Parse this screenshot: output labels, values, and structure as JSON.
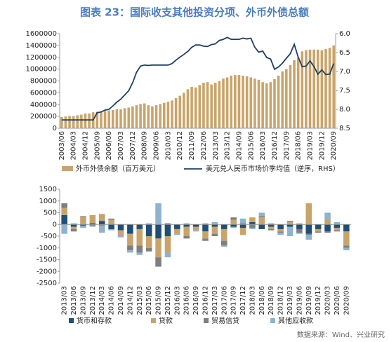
{
  "title": "图表 23：国际收支其他投资分项、外币外债总额",
  "source": "数据来源：Wind、兴业研究",
  "chart_data": [
    {
      "type": "bar",
      "categories": [
        "2003/06",
        null,
        null,
        "2004/03",
        null,
        null,
        "2004/12",
        null,
        null,
        "2005/09",
        null,
        null,
        "2006/06",
        null,
        null,
        "2007/03",
        null,
        null,
        "2007/12",
        null,
        null,
        "2008/09",
        null,
        null,
        "2009/06",
        null,
        null,
        "2010/03",
        null,
        null,
        "2010/12",
        null,
        null,
        "2011/09",
        null,
        null,
        "2012/06",
        null,
        null,
        "2013/03",
        null,
        null,
        "2013/12",
        null,
        null,
        "2014/09",
        null,
        null,
        "2015/06",
        null,
        null,
        "2016/03",
        null,
        null,
        "2016/12",
        null,
        null,
        "2017/09",
        null,
        null,
        "2018/06",
        null,
        null,
        "2019/03",
        null,
        null,
        "2019/12",
        null,
        null,
        "2020/09"
      ],
      "series": [
        {
          "name": "外币外债余额（百万美元）",
          "type": "bar",
          "color": "#c9a46a",
          "values": [
            190000,
            200000,
            210000,
            205000,
            220000,
            230000,
            250000,
            250000,
            270000,
            280000,
            280000,
            290000,
            300000,
            310000,
            320000,
            320000,
            340000,
            350000,
            370000,
            390000,
            410000,
            420000,
            390000,
            370000,
            390000,
            410000,
            430000,
            450000,
            470000,
            510000,
            550000,
            600000,
            660000,
            700000,
            690000,
            730000,
            770000,
            780000,
            740000,
            770000,
            800000,
            840000,
            860000,
            890000,
            900000,
            900000,
            890000,
            880000,
            860000,
            840000,
            820000,
            780000,
            760000,
            780000,
            830000,
            890000,
            960000,
            1000000,
            1070000,
            1150000,
            1200000,
            1300000,
            1320000,
            1330000,
            1330000,
            1330000,
            1320000,
            1340000,
            1360000,
            1400000
          ]
        },
        {
          "name": "美元兑人民币市场价季均值（逆序，RHS）",
          "type": "line",
          "axis": "y2",
          "color": "#1f3f66",
          "values": [
            8.28,
            8.28,
            8.28,
            8.28,
            8.28,
            8.28,
            8.28,
            8.28,
            8.28,
            8.09,
            8.07,
            8.02,
            8.0,
            7.91,
            7.81,
            7.73,
            7.62,
            7.51,
            7.3,
            7.02,
            6.86,
            6.83,
            6.84,
            6.83,
            6.83,
            6.83,
            6.83,
            6.83,
            6.79,
            6.7,
            6.62,
            6.55,
            6.47,
            6.36,
            6.3,
            6.3,
            6.33,
            6.34,
            6.29,
            6.27,
            6.18,
            6.15,
            6.1,
            6.15,
            6.15,
            6.15,
            6.12,
            6.14,
            6.12,
            6.36,
            6.49,
            6.46,
            6.63,
            6.67,
            6.94,
            6.88,
            6.78,
            6.65,
            6.53,
            6.28,
            6.62,
            6.87,
            6.86,
            6.72,
            6.87,
            7.07,
            6.96,
            7.08,
            7.07,
            6.79
          ]
        }
      ],
      "ylim": [
        0,
        1600000
      ],
      "yticks": [
        0,
        200000,
        400000,
        600000,
        800000,
        1000000,
        1200000,
        1400000,
        1600000
      ],
      "y2lim": [
        8.5,
        6.0
      ],
      "y2ticks": [
        {
          "value": 6.0,
          "label": "6.0"
        },
        {
          "value": 6.5,
          "label": "6.5"
        },
        {
          "value": 7.0,
          "label": "7.0"
        },
        {
          "value": 7.5,
          "label": "7.5"
        },
        {
          "value": 8.0,
          "label": "8.0"
        },
        {
          "value": 8.5,
          "label": "8.5"
        }
      ],
      "grid": false
    },
    {
      "type": "bar",
      "stacked": true,
      "categories": [
        "2013/03",
        "2013/06",
        "2013/09",
        "2013/12",
        "2014/03",
        "2014/06",
        "2014/09",
        "2014/12",
        "2015/03",
        "2015/06",
        "2015/09",
        "2015/12",
        "2016/03",
        "2016/06",
        "2016/09",
        "2016/12",
        "2017/03",
        "2017/06",
        "2017/09",
        "2017/12",
        "2018/03",
        "2018/06",
        "2018/09",
        "2018/12",
        "2019/03",
        "2019/06",
        "2019/09",
        "2019/12",
        "2020/03",
        "2020/06",
        "2020/09"
      ],
      "series": [
        {
          "name": "货币和存款",
          "color": "#1f4e79",
          "values": [
            400,
            -100,
            -50,
            50,
            150,
            -200,
            -250,
            -400,
            -200,
            -500,
            -600,
            -500,
            -200,
            -100,
            -100,
            -300,
            -100,
            -200,
            -100,
            -150,
            100,
            -200,
            -100,
            -200,
            -100,
            -200,
            -400,
            -200,
            -300,
            -150,
            -300
          ]
        },
        {
          "name": "贷款",
          "color": "#c9a46a",
          "values": [
            300,
            -100,
            300,
            350,
            300,
            200,
            -250,
            -500,
            -700,
            -500,
            -800,
            -700,
            -200,
            -400,
            -150,
            -300,
            -300,
            -500,
            200,
            -300,
            200,
            300,
            -100,
            -100,
            100,
            50,
            900,
            -100,
            200,
            -100,
            -600
          ]
        },
        {
          "name": "贸易信贷",
          "color": "#7f7f7f",
          "values": [
            200,
            -100,
            50,
            -50,
            -50,
            50,
            0,
            -200,
            -300,
            -150,
            -400,
            50,
            0,
            -100,
            0,
            -100,
            -100,
            -200,
            100,
            50,
            -150,
            50,
            -50,
            -50,
            50,
            -150,
            -50,
            -50,
            -50,
            -50,
            -100
          ]
        },
        {
          "name": "其他应收款",
          "color": "#8db3d1",
          "values": [
            -400,
            50,
            -100,
            -50,
            -300,
            -50,
            -50,
            -100,
            -100,
            50,
            900,
            -200,
            -50,
            50,
            -50,
            50,
            100,
            -50,
            -50,
            200,
            -50,
            150,
            50,
            -100,
            -400,
            -50,
            -200,
            0,
            300,
            100,
            -100
          ]
        }
      ],
      "ylim": [
        -2500,
        1500
      ],
      "yticks": [
        -2500,
        -2000,
        -1500,
        -1000,
        -500,
        0,
        500,
        1000,
        1500
      ],
      "grid": false
    }
  ]
}
